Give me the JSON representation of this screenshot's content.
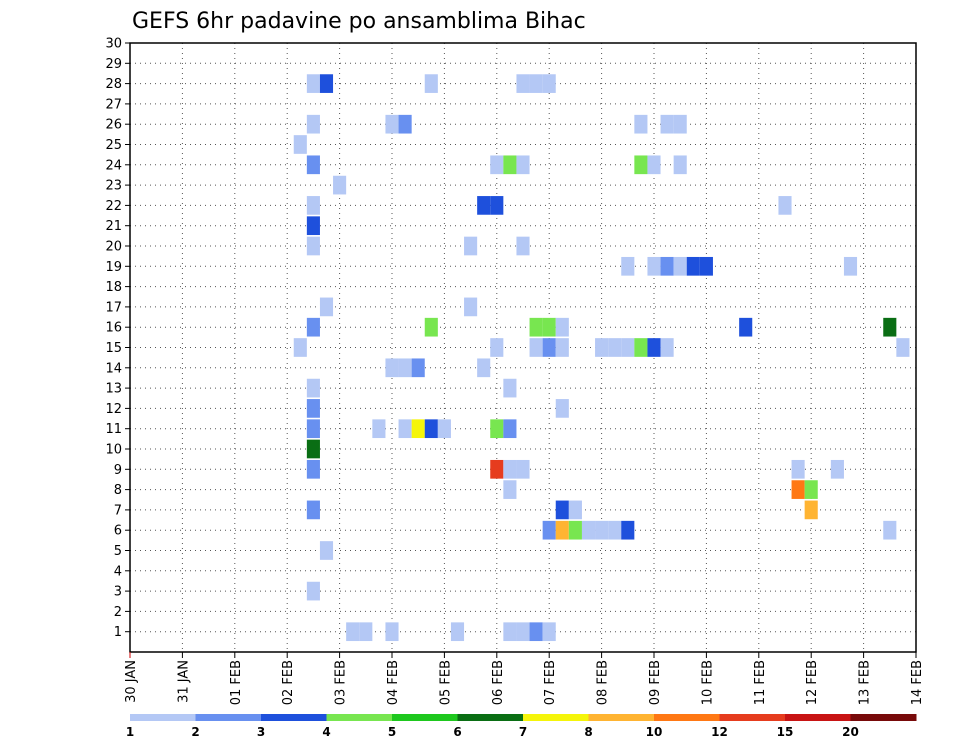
{
  "chart_data": {
    "type": "heatmap",
    "title": "GEFS 6hr padavine po ansamblima Bihac",
    "x_tick_labels": [
      "30 JAN",
      "31 JAN",
      "01 FEB",
      "02 FEB",
      "03 FEB",
      "04 FEB",
      "05 FEB",
      "06 FEB",
      "07 FEB",
      "08 FEB",
      "09 FEB",
      "10 FEB",
      "11 FEB",
      "12 FEB",
      "13 FEB",
      "14 FEB"
    ],
    "y_tick_labels": [
      "1",
      "2",
      "3",
      "4",
      "5",
      "6",
      "7",
      "8",
      "9",
      "10",
      "11",
      "12",
      "13",
      "14",
      "15",
      "16",
      "17",
      "18",
      "19",
      "20",
      "21",
      "22",
      "23",
      "24",
      "25",
      "26",
      "27",
      "28",
      "29",
      "30"
    ],
    "xlim": [
      "30 JAN 00",
      "14 FEB 00"
    ],
    "ylim": [
      0,
      30
    ],
    "x_step_hours": 6,
    "grid": true,
    "legend_position": "bottom",
    "colorbar": {
      "labels": [
        "1",
        "2",
        "3",
        "4",
        "5",
        "6",
        "7",
        "8",
        "10",
        "12",
        "15",
        "20"
      ],
      "colors": [
        "#b4c8f5",
        "#6890f0",
        "#1e50dc",
        "#78e650",
        "#1ec81e",
        "#0a6e14",
        "#f5f50a",
        "#ffb432",
        "#ff7814",
        "#e63c1e",
        "#c81414",
        "#780a0a"
      ]
    },
    "cells": [
      {
        "t": "02 FEB 12",
        "m": 28,
        "v": 1
      },
      {
        "t": "02 FEB 18",
        "m": 28,
        "v": 3
      },
      {
        "t": "04 FEB 18",
        "m": 28,
        "v": 1
      },
      {
        "t": "06 FEB 12",
        "m": 28,
        "v": 1
      },
      {
        "t": "06 FEB 18",
        "m": 28,
        "v": 1
      },
      {
        "t": "07 FEB 00",
        "m": 28,
        "v": 1
      },
      {
        "t": "02 FEB 12",
        "m": 26,
        "v": 1
      },
      {
        "t": "04 FEB 00",
        "m": 26,
        "v": 1
      },
      {
        "t": "04 FEB 06",
        "m": 26,
        "v": 2
      },
      {
        "t": "08 FEB 18",
        "m": 26,
        "v": 1
      },
      {
        "t": "09 FEB 06",
        "m": 26,
        "v": 1
      },
      {
        "t": "09 FEB 12",
        "m": 26,
        "v": 1
      },
      {
        "t": "02 FEB 06",
        "m": 25,
        "v": 1
      },
      {
        "t": "02 FEB 12",
        "m": 24,
        "v": 2
      },
      {
        "t": "06 FEB 00",
        "m": 24,
        "v": 1
      },
      {
        "t": "06 FEB 06",
        "m": 24,
        "v": 4
      },
      {
        "t": "06 FEB 12",
        "m": 24,
        "v": 1
      },
      {
        "t": "08 FEB 18",
        "m": 24,
        "v": 4
      },
      {
        "t": "09 FEB 00",
        "m": 24,
        "v": 1
      },
      {
        "t": "09 FEB 12",
        "m": 24,
        "v": 1
      },
      {
        "t": "03 FEB 00",
        "m": 23,
        "v": 1
      },
      {
        "t": "02 FEB 12",
        "m": 22,
        "v": 1
      },
      {
        "t": "05 FEB 18",
        "m": 22,
        "v": 3
      },
      {
        "t": "06 FEB 00",
        "m": 22,
        "v": 3
      },
      {
        "t": "11 FEB 12",
        "m": 22,
        "v": 1
      },
      {
        "t": "02 FEB 12",
        "m": 21,
        "v": 3
      },
      {
        "t": "02 FEB 12",
        "m": 20,
        "v": 1
      },
      {
        "t": "05 FEB 12",
        "m": 20,
        "v": 1
      },
      {
        "t": "06 FEB 12",
        "m": 20,
        "v": 1
      },
      {
        "t": "08 FEB 12",
        "m": 19,
        "v": 1
      },
      {
        "t": "09 FEB 00",
        "m": 19,
        "v": 1
      },
      {
        "t": "09 FEB 06",
        "m": 19,
        "v": 2
      },
      {
        "t": "09 FEB 12",
        "m": 19,
        "v": 1
      },
      {
        "t": "09 FEB 18",
        "m": 19,
        "v": 3
      },
      {
        "t": "10 FEB 00",
        "m": 19,
        "v": 3
      },
      {
        "t": "12 FEB 18",
        "m": 19,
        "v": 1
      },
      {
        "t": "02 FEB 18",
        "m": 17,
        "v": 1
      },
      {
        "t": "05 FEB 12",
        "m": 17,
        "v": 1
      },
      {
        "t": "02 FEB 12",
        "m": 16,
        "v": 2
      },
      {
        "t": "04 FEB 18",
        "m": 16,
        "v": 4
      },
      {
        "t": "06 FEB 18",
        "m": 16,
        "v": 4
      },
      {
        "t": "07 FEB 00",
        "m": 16,
        "v": 4
      },
      {
        "t": "07 FEB 06",
        "m": 16,
        "v": 1
      },
      {
        "t": "10 FEB 18",
        "m": 16,
        "v": 3
      },
      {
        "t": "13 FEB 12",
        "m": 16,
        "v": 6
      },
      {
        "t": "02 FEB 06",
        "m": 15,
        "v": 1
      },
      {
        "t": "06 FEB 00",
        "m": 15,
        "v": 1
      },
      {
        "t": "06 FEB 18",
        "m": 15,
        "v": 1
      },
      {
        "t": "07 FEB 00",
        "m": 15,
        "v": 2
      },
      {
        "t": "07 FEB 06",
        "m": 15,
        "v": 1
      },
      {
        "t": "08 FEB 00",
        "m": 15,
        "v": 1
      },
      {
        "t": "08 FEB 06",
        "m": 15,
        "v": 1
      },
      {
        "t": "08 FEB 12",
        "m": 15,
        "v": 1
      },
      {
        "t": "08 FEB 18",
        "m": 15,
        "v": 4
      },
      {
        "t": "09 FEB 00",
        "m": 15,
        "v": 3
      },
      {
        "t": "09 FEB 06",
        "m": 15,
        "v": 1
      },
      {
        "t": "13 FEB 18",
        "m": 15,
        "v": 1
      },
      {
        "t": "04 FEB 00",
        "m": 14,
        "v": 1
      },
      {
        "t": "04 FEB 06",
        "m": 14,
        "v": 1
      },
      {
        "t": "04 FEB 12",
        "m": 14,
        "v": 2
      },
      {
        "t": "05 FEB 18",
        "m": 14,
        "v": 1
      },
      {
        "t": "02 FEB 12",
        "m": 13,
        "v": 1
      },
      {
        "t": "06 FEB 06",
        "m": 13,
        "v": 1
      },
      {
        "t": "02 FEB 12",
        "m": 12,
        "v": 2
      },
      {
        "t": "07 FEB 06",
        "m": 12,
        "v": 1
      },
      {
        "t": "02 FEB 12",
        "m": 11,
        "v": 2
      },
      {
        "t": "03 FEB 18",
        "m": 11,
        "v": 1
      },
      {
        "t": "04 FEB 06",
        "m": 11,
        "v": 1
      },
      {
        "t": "04 FEB 12",
        "m": 11,
        "v": 7
      },
      {
        "t": "04 FEB 18",
        "m": 11,
        "v": 3
      },
      {
        "t": "05 FEB 00",
        "m": 11,
        "v": 1
      },
      {
        "t": "06 FEB 00",
        "m": 11,
        "v": 4
      },
      {
        "t": "06 FEB 06",
        "m": 11,
        "v": 2
      },
      {
        "t": "02 FEB 12",
        "m": 10,
        "v": 6
      },
      {
        "t": "02 FEB 12",
        "m": 9,
        "v": 2
      },
      {
        "t": "06 FEB 00",
        "m": 9,
        "v": 12
      },
      {
        "t": "06 FEB 06",
        "m": 9,
        "v": 1
      },
      {
        "t": "06 FEB 12",
        "m": 9,
        "v": 1
      },
      {
        "t": "11 FEB 18",
        "m": 9,
        "v": 1
      },
      {
        "t": "12 FEB 12",
        "m": 9,
        "v": 1
      },
      {
        "t": "06 FEB 06",
        "m": 8,
        "v": 1
      },
      {
        "t": "11 FEB 18",
        "m": 8,
        "v": 10
      },
      {
        "t": "12 FEB 00",
        "m": 8,
        "v": 4
      },
      {
        "t": "02 FEB 12",
        "m": 7,
        "v": 2
      },
      {
        "t": "07 FEB 06",
        "m": 7,
        "v": 3
      },
      {
        "t": "07 FEB 12",
        "m": 7,
        "v": 1
      },
      {
        "t": "12 FEB 00",
        "m": 7,
        "v": 8
      },
      {
        "t": "07 FEB 00",
        "m": 6,
        "v": 2
      },
      {
        "t": "07 FEB 06",
        "m": 6,
        "v": 8
      },
      {
        "t": "07 FEB 12",
        "m": 6,
        "v": 4
      },
      {
        "t": "07 FEB 18",
        "m": 6,
        "v": 1
      },
      {
        "t": "08 FEB 00",
        "m": 6,
        "v": 1
      },
      {
        "t": "08 FEB 06",
        "m": 6,
        "v": 1
      },
      {
        "t": "08 FEB 12",
        "m": 6,
        "v": 3
      },
      {
        "t": "13 FEB 12",
        "m": 6,
        "v": 1
      },
      {
        "t": "02 FEB 18",
        "m": 5,
        "v": 1
      },
      {
        "t": "02 FEB 12",
        "m": 3,
        "v": 1
      },
      {
        "t": "03 FEB 06",
        "m": 1,
        "v": 1
      },
      {
        "t": "03 FEB 12",
        "m": 1,
        "v": 1
      },
      {
        "t": "04 FEB 00",
        "m": 1,
        "v": 1
      },
      {
        "t": "05 FEB 06",
        "m": 1,
        "v": 1
      },
      {
        "t": "06 FEB 06",
        "m": 1,
        "v": 1
      },
      {
        "t": "06 FEB 12",
        "m": 1,
        "v": 1
      },
      {
        "t": "06 FEB 18",
        "m": 1,
        "v": 2
      },
      {
        "t": "07 FEB 00",
        "m": 1,
        "v": 1
      }
    ]
  }
}
